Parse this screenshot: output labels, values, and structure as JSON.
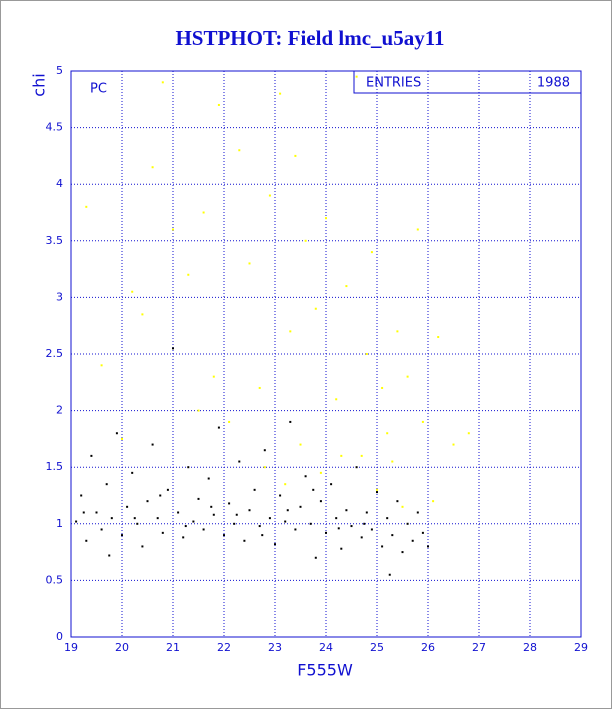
{
  "chart_data": {
    "type": "scatter",
    "title": "HSTPHOT: Field lmc_u5ay11",
    "x_label": "F555W",
    "y_label": "chi",
    "annotation": "PC",
    "stats_label": "ENTRIES",
    "stats_value": 1988,
    "xlim": [
      19,
      29
    ],
    "ylim": [
      0,
      5
    ],
    "xticks": [
      19,
      20,
      21,
      22,
      23,
      24,
      25,
      26,
      27,
      28,
      29
    ],
    "yticks": [
      0,
      0.5,
      1,
      1.5,
      2,
      2.5,
      3,
      3.5,
      4,
      4.5,
      5
    ],
    "grid": true,
    "series": [
      {
        "color": "#ffff00",
        "x": [
          19.3,
          19.6,
          20.2,
          20.4,
          20.6,
          20.8,
          21.0,
          21.3,
          21.6,
          21.8,
          21.9,
          22.1,
          22.3,
          22.5,
          22.7,
          22.9,
          23.1,
          23.3,
          23.4,
          23.5,
          23.6,
          23.8,
          23.9,
          24.0,
          24.2,
          24.4,
          24.6,
          24.7,
          24.8,
          24.9,
          25.0,
          25.1,
          25.2,
          25.4,
          25.5,
          25.6,
          25.8,
          25.9,
          26.1,
          26.2,
          26.5,
          26.8,
          20.0,
          21.5,
          22.8,
          23.2,
          24.3,
          25.3
        ],
        "values": [
          3.8,
          2.4,
          3.05,
          2.85,
          4.15,
          4.9,
          3.6,
          3.2,
          3.75,
          2.3,
          4.7,
          1.9,
          4.3,
          3.3,
          2.2,
          3.9,
          4.8,
          2.7,
          4.25,
          1.7,
          3.5,
          2.9,
          1.45,
          3.7,
          2.1,
          3.1,
          4.95,
          1.6,
          2.5,
          3.4,
          1.3,
          2.2,
          1.8,
          2.7,
          1.15,
          2.3,
          3.6,
          1.9,
          1.2,
          2.65,
          1.7,
          1.8,
          1.75,
          2.0,
          1.5,
          1.35,
          1.6,
          1.55
        ]
      },
      {
        "color": "#000000",
        "x": [
          19.1,
          19.2,
          19.3,
          19.4,
          19.5,
          19.6,
          19.7,
          19.8,
          19.9,
          20.0,
          20.1,
          20.2,
          20.3,
          20.4,
          20.5,
          20.6,
          20.7,
          20.8,
          20.9,
          21.0,
          21.1,
          21.2,
          21.3,
          21.4,
          21.5,
          21.6,
          21.7,
          21.8,
          21.9,
          22.0,
          22.1,
          22.2,
          22.3,
          22.4,
          22.5,
          22.6,
          22.7,
          22.8,
          22.9,
          23.0,
          23.1,
          23.2,
          23.3,
          23.4,
          23.5,
          23.6,
          23.7,
          23.8,
          23.9,
          24.0,
          24.1,
          24.2,
          24.3,
          24.4,
          24.5,
          24.6,
          24.7,
          24.8,
          24.9,
          25.0,
          25.1,
          25.2,
          25.3,
          25.4,
          25.5,
          25.6,
          25.7,
          25.8,
          25.9,
          26.0,
          19.25,
          20.25,
          21.25,
          22.25,
          23.25,
          24.25,
          25.25,
          19.75,
          20.75,
          21.75,
          22.75,
          23.75,
          24.75
        ],
        "values": [
          1.02,
          1.25,
          0.85,
          1.6,
          1.1,
          0.95,
          1.35,
          1.05,
          1.8,
          0.9,
          1.15,
          1.45,
          1.0,
          0.8,
          1.2,
          1.7,
          1.05,
          0.92,
          1.3,
          2.55,
          1.1,
          0.88,
          1.5,
          1.02,
          1.22,
          0.95,
          1.4,
          1.08,
          1.85,
          0.9,
          1.18,
          1.0,
          1.55,
          0.85,
          1.12,
          1.3,
          0.98,
          1.65,
          1.05,
          0.82,
          1.25,
          1.02,
          1.9,
          0.95,
          1.15,
          1.42,
          1.0,
          0.7,
          1.2,
          0.92,
          1.35,
          1.05,
          0.78,
          1.12,
          0.98,
          1.5,
          0.88,
          1.1,
          0.95,
          1.28,
          0.8,
          1.05,
          0.9,
          1.2,
          0.75,
          1.0,
          0.85,
          1.1,
          0.92,
          0.8,
          1.1,
          1.05,
          0.98,
          1.08,
          1.12,
          0.96,
          0.55,
          0.72,
          1.25,
          1.15,
          0.9,
          1.3,
          1.0
        ]
      }
    ]
  }
}
